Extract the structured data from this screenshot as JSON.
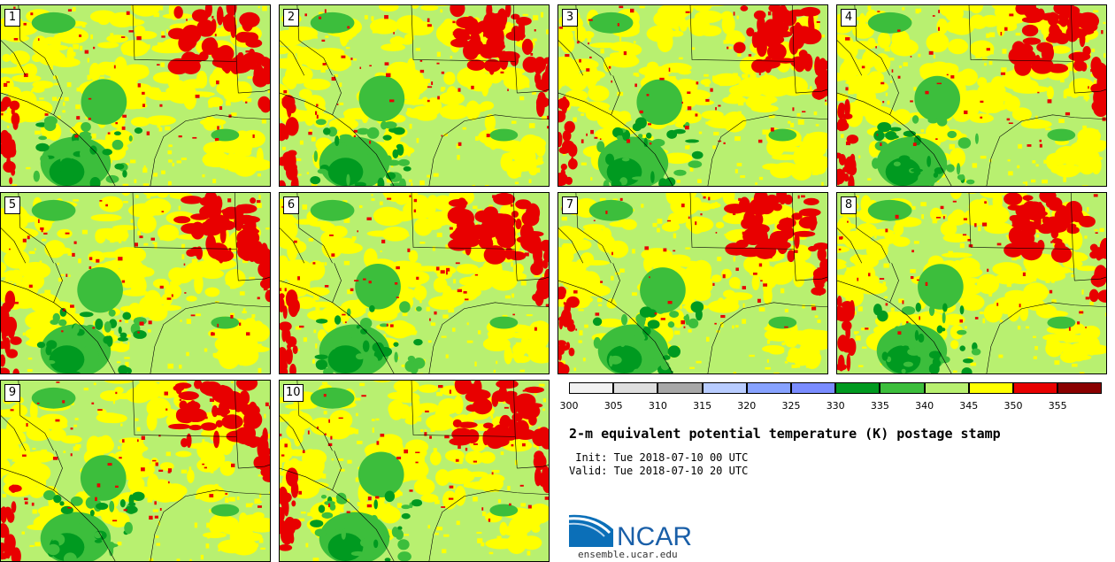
{
  "title": "2-m equivalent potential temperature (K) postage stamp",
  "init_line": " Init: Tue 2018-07-10 00 UTC",
  "valid_line": "Valid: Tue 2018-07-10 20 UTC",
  "logo_text": "NCAR",
  "site_text": "ensemble.ucar.edu",
  "members": [
    "1",
    "2",
    "3",
    "4",
    "5",
    "6",
    "7",
    "8",
    "9",
    "10"
  ],
  "colorbar": {
    "labels": [
      "300",
      "305",
      "310",
      "315",
      "320",
      "325",
      "330",
      "335",
      "340",
      "345",
      "350",
      "355"
    ],
    "colors": [
      "#f2f2f2",
      "#dedede",
      "#a8a8a8",
      "#b8ccff",
      "#87a2ff",
      "#7a8cff",
      "#009a20",
      "#3cbe3c",
      "#b8f070",
      "#ffff00",
      "#e80000",
      "#8a0000"
    ]
  },
  "map_colors": {
    "bg": "#b8f070",
    "yellow": "#ffff00",
    "red": "#e80000",
    "green_mid": "#3cbe3c",
    "green_dark": "#009a20",
    "border": "#000000"
  }
}
